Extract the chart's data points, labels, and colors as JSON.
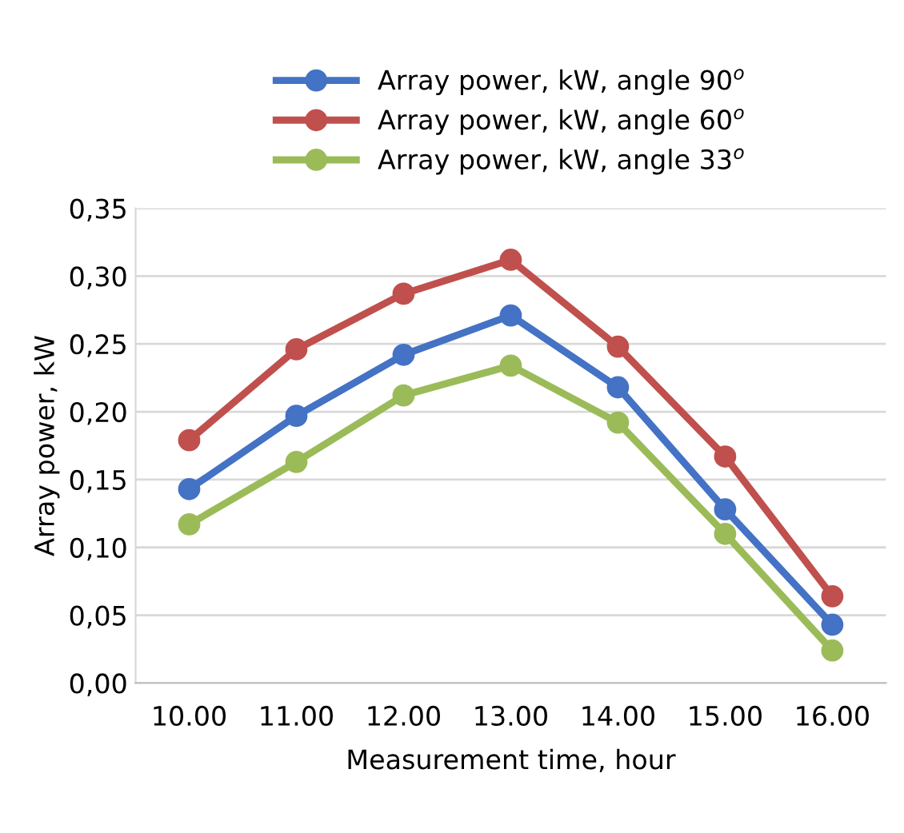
{
  "chart_data": {
    "type": "line",
    "ylabel": "Array power, kW",
    "xlabel": "Measurement time, hour",
    "categories": [
      "10.00",
      "11.00",
      "12.00",
      "13.00",
      "14.00",
      "15.00",
      "16.00"
    ],
    "series": [
      {
        "name": "Array power, kW, angle 90$^{o}$",
        "color": "#4472c4",
        "values": [
          0.143,
          0.197,
          0.242,
          0.271,
          0.218,
          0.128,
          0.043
        ]
      },
      {
        "name": "Array power, kW, angle 60$^{o}$",
        "color": "#c0504d",
        "values": [
          0.179,
          0.246,
          0.287,
          0.312,
          0.248,
          0.167,
          0.064
        ]
      },
      {
        "name": "Array power, kW, angle 33$^{o}$",
        "color": "#9bbb59",
        "values": [
          0.117,
          0.163,
          0.212,
          0.234,
          0.192,
          0.11,
          0.024
        ]
      }
    ],
    "ylim": [
      0,
      0.35
    ],
    "yticks": [
      {
        "value": 0,
        "label": "0,00"
      },
      {
        "value": 0.05,
        "label": "0,05"
      },
      {
        "value": 0.1,
        "label": "0,10"
      },
      {
        "value": 0.15,
        "label": "0,15"
      },
      {
        "value": 0.2,
        "label": "0,20"
      },
      {
        "value": 0.25,
        "label": "0,25"
      },
      {
        "value": 0.3,
        "label": "0,30"
      },
      {
        "value": 0.35,
        "label": "0,35"
      }
    ],
    "grid": "y",
    "legend": "top",
    "marker": "circle",
    "line_style": "solid"
  }
}
